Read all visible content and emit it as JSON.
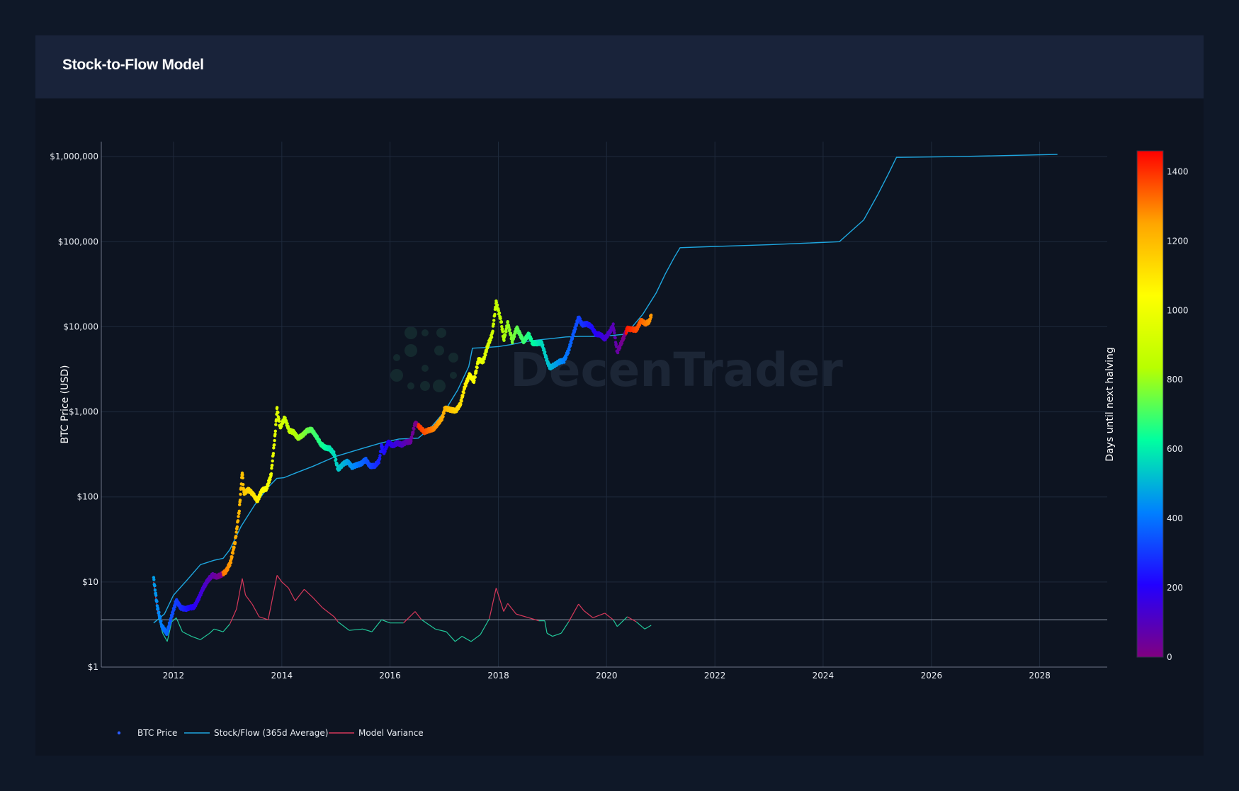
{
  "panel": {
    "title": "Stock-to-Flow Model"
  },
  "colors": {
    "background": "#0f1828",
    "panel": "#0d1421",
    "header": "#19233a",
    "stock_flow_line": "#1ea7e0",
    "variance_high": "#d6385a",
    "variance_low": "#22c89a",
    "grid": "#1f2a3c",
    "text": "#e8ecf2"
  },
  "chart_data": {
    "type": "scatter",
    "ylabel": "BTC Price (USD)",
    "xlabel": "",
    "y_scale": "log",
    "ylim": [
      1,
      1500000
    ],
    "xlim": [
      "2010-09-01",
      "2029-04-01"
    ],
    "y_ticks": [
      {
        "value": 1,
        "label": "$1"
      },
      {
        "value": 10,
        "label": "$10"
      },
      {
        "value": 100,
        "label": "$100"
      },
      {
        "value": 1000,
        "label": "$1,000"
      },
      {
        "value": 10000,
        "label": "$10,000"
      },
      {
        "value": 100000,
        "label": "$100,000"
      },
      {
        "value": 1000000,
        "label": "$1,000,000"
      }
    ],
    "x_ticks": [
      "2012",
      "2014",
      "2016",
      "2018",
      "2020",
      "2022",
      "2024",
      "2026",
      "2028"
    ],
    "grid": true,
    "variance_baseline": 3.6,
    "colorbar": {
      "title": "Days until next halving",
      "min": 0,
      "max": 1460,
      "ticks": [
        0,
        200,
        400,
        600,
        800,
        1000,
        1200,
        1400
      ],
      "colorscale": [
        "#800080",
        "#2200ff",
        "#0080ff",
        "#00ffa0",
        "#b8ff00",
        "#ffff00",
        "#ffa500",
        "#ff0000"
      ]
    },
    "legend": {
      "position": "bottom-left",
      "entries": [
        "BTC Price",
        "Stock/Flow (365d Average)",
        "Model Variance"
      ]
    },
    "halvings": [
      "2012-11-28",
      "2016-07-09",
      "2020-05-11",
      "2024-04-20"
    ],
    "series": [
      {
        "name": "BTC Price",
        "mode": "markers",
        "points": [
          [
            "2011-08-20",
            11
          ],
          [
            "2011-09-15",
            5
          ],
          [
            "2011-10-15",
            3
          ],
          [
            "2011-11-18",
            2.5
          ],
          [
            "2011-12-20",
            4
          ],
          [
            "2012-01-20",
            6
          ],
          [
            "2012-02-20",
            5
          ],
          [
            "2012-03-20",
            4.8
          ],
          [
            "2012-04-20",
            5
          ],
          [
            "2012-05-20",
            5.1
          ],
          [
            "2012-06-20",
            6.5
          ],
          [
            "2012-07-20",
            8.5
          ],
          [
            "2012-08-20",
            10.5
          ],
          [
            "2012-09-20",
            12
          ],
          [
            "2012-10-20",
            11.5
          ],
          [
            "2012-11-20",
            12.2
          ],
          [
            "2012-12-20",
            13.3
          ],
          [
            "2013-01-20",
            17
          ],
          [
            "2013-02-20",
            30
          ],
          [
            "2013-03-20",
            70
          ],
          [
            "2013-04-09",
            200
          ],
          [
            "2013-04-20",
            110
          ],
          [
            "2013-05-20",
            122
          ],
          [
            "2013-06-20",
            108
          ],
          [
            "2013-07-20",
            90
          ],
          [
            "2013-08-20",
            120
          ],
          [
            "2013-09-20",
            125
          ],
          [
            "2013-10-20",
            180
          ],
          [
            "2013-11-15",
            500
          ],
          [
            "2013-11-30",
            1100
          ],
          [
            "2013-12-20",
            650
          ],
          [
            "2014-01-20",
            850
          ],
          [
            "2014-02-20",
            600
          ],
          [
            "2014-03-20",
            580
          ],
          [
            "2014-04-20",
            490
          ],
          [
            "2014-05-20",
            530
          ],
          [
            "2014-06-20",
            600
          ],
          [
            "2014-07-20",
            620
          ],
          [
            "2014-08-20",
            520
          ],
          [
            "2014-09-20",
            420
          ],
          [
            "2014-10-20",
            380
          ],
          [
            "2014-11-20",
            370
          ],
          [
            "2014-12-20",
            320
          ],
          [
            "2015-01-15",
            210
          ],
          [
            "2015-02-20",
            245
          ],
          [
            "2015-03-20",
            260
          ],
          [
            "2015-04-20",
            225
          ],
          [
            "2015-05-20",
            237
          ],
          [
            "2015-06-20",
            245
          ],
          [
            "2015-07-20",
            275
          ],
          [
            "2015-08-20",
            230
          ],
          [
            "2015-09-20",
            232
          ],
          [
            "2015-10-20",
            265
          ],
          [
            "2015-11-05",
            400
          ],
          [
            "2015-11-20",
            330
          ],
          [
            "2015-12-20",
            440
          ],
          [
            "2016-01-20",
            400
          ],
          [
            "2016-02-20",
            430
          ],
          [
            "2016-03-20",
            412
          ],
          [
            "2016-04-20",
            440
          ],
          [
            "2016-05-20",
            450
          ],
          [
            "2016-06-18",
            740
          ],
          [
            "2016-07-20",
            660
          ],
          [
            "2016-08-20",
            580
          ],
          [
            "2016-09-20",
            608
          ],
          [
            "2016-10-20",
            630
          ],
          [
            "2016-11-20",
            730
          ],
          [
            "2016-12-20",
            860
          ],
          [
            "2017-01-05",
            1100
          ],
          [
            "2017-02-20",
            1050
          ],
          [
            "2017-03-20",
            1030
          ],
          [
            "2017-04-20",
            1230
          ],
          [
            "2017-05-20",
            2000
          ],
          [
            "2017-06-20",
            2700
          ],
          [
            "2017-07-20",
            2300
          ],
          [
            "2017-08-20",
            4100
          ],
          [
            "2017-09-20",
            3900
          ],
          [
            "2017-10-20",
            5900
          ],
          [
            "2017-11-20",
            8100
          ],
          [
            "2017-12-17",
            19500
          ],
          [
            "2018-01-20",
            11500
          ],
          [
            "2018-02-06",
            7000
          ],
          [
            "2018-03-05",
            11000
          ],
          [
            "2018-04-05",
            6800
          ],
          [
            "2018-05-05",
            9700
          ],
          [
            "2018-06-20",
            6700
          ],
          [
            "2018-07-25",
            8200
          ],
          [
            "2018-08-20",
            6400
          ],
          [
            "2018-09-20",
            6400
          ],
          [
            "2018-10-20",
            6500
          ],
          [
            "2018-11-25",
            4000
          ],
          [
            "2018-12-15",
            3300
          ],
          [
            "2019-01-20",
            3600
          ],
          [
            "2019-02-20",
            3900
          ],
          [
            "2019-03-20",
            4000
          ],
          [
            "2019-04-20",
            5300
          ],
          [
            "2019-05-20",
            8000
          ],
          [
            "2019-06-26",
            12900
          ],
          [
            "2019-07-20",
            10600
          ],
          [
            "2019-08-20",
            10800
          ],
          [
            "2019-09-20",
            10100
          ],
          [
            "2019-10-20",
            8200
          ],
          [
            "2019-11-20",
            8100
          ],
          [
            "2019-12-20",
            7200
          ],
          [
            "2020-01-20",
            8600
          ],
          [
            "2020-02-15",
            10300
          ],
          [
            "2020-03-13",
            5000
          ],
          [
            "2020-04-20",
            7100
          ],
          [
            "2020-05-20",
            9500
          ],
          [
            "2020-06-20",
            9300
          ],
          [
            "2020-07-20",
            9200
          ],
          [
            "2020-08-20",
            11800
          ],
          [
            "2020-09-20",
            10900
          ],
          [
            "2020-10-15",
            11500
          ],
          [
            "2020-10-28",
            13700
          ]
        ]
      },
      {
        "name": "Stock/Flow (365d Average)",
        "mode": "lines",
        "points": [
          [
            "2011-08-20",
            3.3
          ],
          [
            "2011-11-01",
            4.2
          ],
          [
            "2012-01-01",
            7
          ],
          [
            "2012-04-01",
            10.5
          ],
          [
            "2012-07-01",
            16
          ],
          [
            "2012-10-01",
            18
          ],
          [
            "2012-12-01",
            19
          ],
          [
            "2013-01-15",
            24
          ],
          [
            "2013-04-01",
            45
          ],
          [
            "2013-07-01",
            80
          ],
          [
            "2013-10-01",
            130
          ],
          [
            "2013-11-28",
            165
          ],
          [
            "2014-01-15",
            168
          ],
          [
            "2014-04-01",
            190
          ],
          [
            "2014-08-01",
            230
          ],
          [
            "2015-01-01",
            300
          ],
          [
            "2015-06-01",
            360
          ],
          [
            "2015-11-01",
            430
          ],
          [
            "2016-03-01",
            480
          ],
          [
            "2016-07-09",
            490
          ],
          [
            "2016-10-01",
            650
          ],
          [
            "2017-01-01",
            1000
          ],
          [
            "2017-04-01",
            1800
          ],
          [
            "2017-06-15",
            3400
          ],
          [
            "2017-07-10",
            5600
          ],
          [
            "2017-10-01",
            5700
          ],
          [
            "2018-01-01",
            5850
          ],
          [
            "2018-04-01",
            6200
          ],
          [
            "2018-07-01",
            6700
          ],
          [
            "2018-10-01",
            7000
          ],
          [
            "2019-01-01",
            7300
          ],
          [
            "2019-04-01",
            7600
          ],
          [
            "2019-07-01",
            7700
          ],
          [
            "2019-10-01",
            7700
          ],
          [
            "2020-01-01",
            7800
          ],
          [
            "2020-05-11",
            8200
          ],
          [
            "2020-09-01",
            14000
          ],
          [
            "2020-12-01",
            25000
          ],
          [
            "2021-02-01",
            42000
          ],
          [
            "2021-04-01",
            65000
          ],
          [
            "2021-05-11",
            85000
          ],
          [
            "2022-01-01",
            88000
          ],
          [
            "2023-01-01",
            92000
          ],
          [
            "2024-04-20",
            100000
          ],
          [
            "2024-10-01",
            180000
          ],
          [
            "2025-01-01",
            350000
          ],
          [
            "2025-03-15",
            620000
          ],
          [
            "2025-05-10",
            980000
          ],
          [
            "2026-06-01",
            1000000
          ],
          [
            "2027-06-01",
            1030000
          ],
          [
            "2028-04-30",
            1060000
          ]
        ]
      },
      {
        "name": "Model Variance",
        "mode": "lines",
        "points": [
          [
            "2011-08-20",
            10
          ],
          [
            "2011-09-20",
            4
          ],
          [
            "2011-10-20",
            2.5
          ],
          [
            "2011-11-20",
            2
          ],
          [
            "2011-12-20",
            3.4
          ],
          [
            "2012-01-20",
            3.8
          ],
          [
            "2012-03-01",
            2.6
          ],
          [
            "2012-05-01",
            2.3
          ],
          [
            "2012-07-01",
            2.1
          ],
          [
            "2012-09-01",
            2.5
          ],
          [
            "2012-10-01",
            2.8
          ],
          [
            "2012-12-01",
            2.6
          ],
          [
            "2013-01-15",
            3.2
          ],
          [
            "2013-03-01",
            4.8
          ],
          [
            "2013-04-09",
            11
          ],
          [
            "2013-05-01",
            7
          ],
          [
            "2013-06-15",
            5.5
          ],
          [
            "2013-08-01",
            3.9
          ],
          [
            "2013-10-01",
            3.6
          ],
          [
            "2013-11-30",
            12
          ],
          [
            "2014-01-01",
            10
          ],
          [
            "2014-02-15",
            8.5
          ],
          [
            "2014-04-01",
            6
          ],
          [
            "2014-06-01",
            8.2
          ],
          [
            "2014-08-01",
            6.5
          ],
          [
            "2014-10-01",
            5
          ],
          [
            "2014-12-20",
            3.9
          ],
          [
            "2015-01-15",
            3.4
          ],
          [
            "2015-04-01",
            2.7
          ],
          [
            "2015-07-01",
            2.8
          ],
          [
            "2015-09-01",
            2.6
          ],
          [
            "2015-11-05",
            3.6
          ],
          [
            "2016-01-01",
            3.3
          ],
          [
            "2016-04-01",
            3.3
          ],
          [
            "2016-06-18",
            4.5
          ],
          [
            "2016-08-01",
            3.6
          ],
          [
            "2016-11-01",
            2.8
          ],
          [
            "2017-01-15",
            2.6
          ],
          [
            "2017-03-15",
            2
          ],
          [
            "2017-05-01",
            2.3
          ],
          [
            "2017-07-01",
            2
          ],
          [
            "2017-09-01",
            2.4
          ],
          [
            "2017-11-01",
            3.7
          ],
          [
            "2017-12-17",
            8.5
          ],
          [
            "2018-02-06",
            4.5
          ],
          [
            "2018-03-05",
            5.6
          ],
          [
            "2018-05-01",
            4.2
          ],
          [
            "2018-07-25",
            3.8
          ],
          [
            "2018-10-01",
            3.5
          ],
          [
            "2018-11-10",
            3.5
          ],
          [
            "2018-11-25",
            2.5
          ],
          [
            "2019-01-01",
            2.3
          ],
          [
            "2019-03-01",
            2.5
          ],
          [
            "2019-04-20",
            3.4
          ],
          [
            "2019-06-26",
            5.5
          ],
          [
            "2019-08-01",
            4.6
          ],
          [
            "2019-10-01",
            3.8
          ],
          [
            "2019-12-20",
            4.3
          ],
          [
            "2020-02-15",
            3.6
          ],
          [
            "2020-03-13",
            3
          ],
          [
            "2020-05-20",
            3.9
          ],
          [
            "2020-07-20",
            3.4
          ],
          [
            "2020-09-15",
            2.8
          ],
          [
            "2020-10-28",
            3.1
          ]
        ]
      }
    ]
  }
}
